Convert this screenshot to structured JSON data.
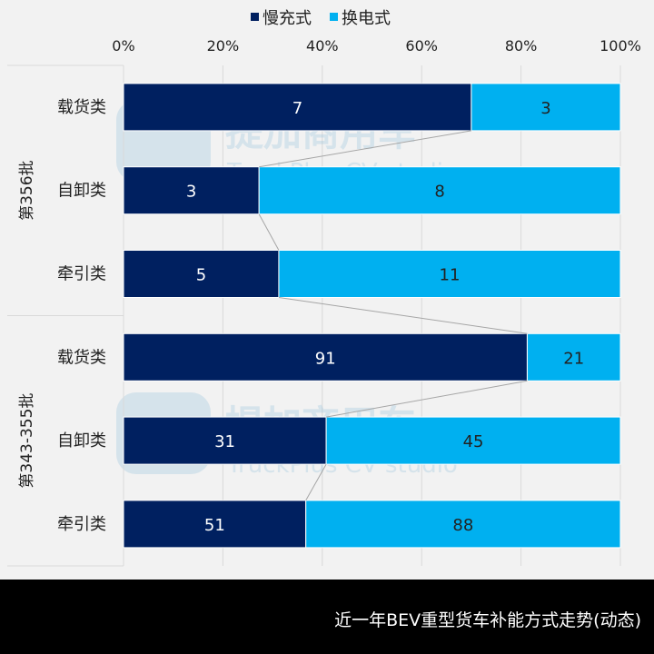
{
  "chart_data": {
    "type": "bar",
    "orientation": "horizontal",
    "stacking": "percent",
    "legend": {
      "position": "top",
      "entries": [
        "慢充式",
        "换电式"
      ]
    },
    "x_ticks": [
      "0%",
      "20%",
      "40%",
      "60%",
      "80%",
      "100%"
    ],
    "xlim": [
      0,
      100
    ],
    "grid": true,
    "groups": [
      {
        "label": "第356批",
        "categories": [
          "载货类",
          "自卸类",
          "牵引类"
        ]
      },
      {
        "label": "第343-355批",
        "categories": [
          "载货类",
          "自卸类",
          "牵引类"
        ]
      }
    ],
    "series": [
      {
        "name": "慢充式",
        "color": "#002060",
        "values": [
          7,
          3,
          5,
          91,
          31,
          51
        ]
      },
      {
        "name": "换电式",
        "color": "#00b0f0",
        "values": [
          3,
          8,
          11,
          21,
          45,
          88
        ]
      }
    ]
  },
  "watermark": {
    "cn": "提加商用车",
    "en": "TruckPlus CV studio"
  },
  "caption": "近一年BEV重型货车补能方式走势(动态)"
}
